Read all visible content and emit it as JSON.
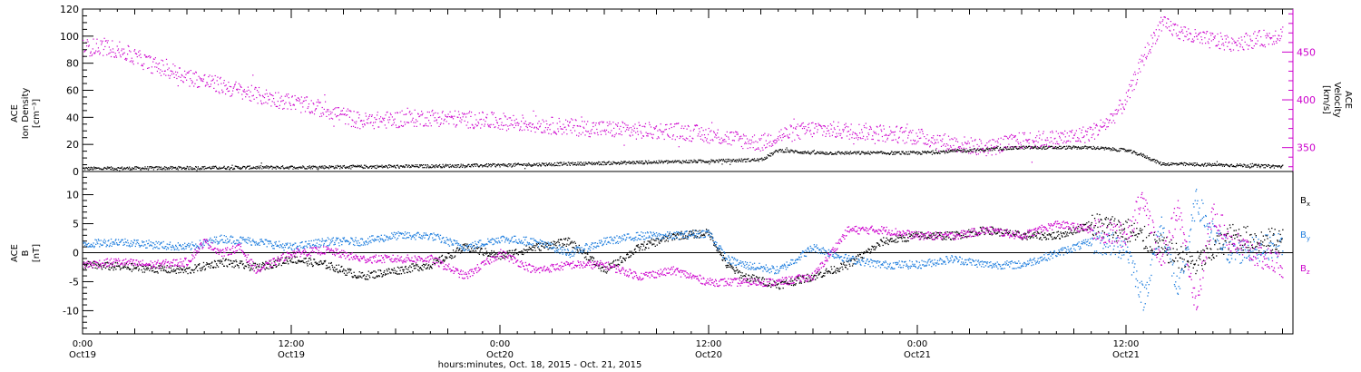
{
  "chart_data": [
    {
      "type": "scatter",
      "title": "",
      "ylabel_lines": [
        "ACE",
        "Ion Density",
        "[cm⁻³]"
      ],
      "ylabel_right_lines": [
        "ACE",
        "Velocity",
        "[km/s]"
      ],
      "ylim": [
        0,
        120
      ],
      "yticks": [
        0,
        20,
        40,
        60,
        80,
        100,
        120
      ],
      "ylim_right": [
        325,
        495
      ],
      "yticks_right": [
        350,
        400,
        450
      ],
      "x_hours": [
        0,
        69.6
      ],
      "series": [
        {
          "name": "",
          "axis": "left",
          "color": "#000000",
          "x": [
            0,
            6,
            12,
            18,
            24,
            30,
            36,
            39,
            40,
            42,
            48,
            54,
            58,
            60,
            61,
            62,
            66,
            69
          ],
          "values": [
            2.5,
            3,
            3.5,
            4,
            5,
            6.5,
            8,
            9,
            16,
            14,
            14,
            18,
            18,
            16,
            12,
            6,
            5,
            4
          ]
        },
        {
          "name": "",
          "axis": "right",
          "color": "#cc00cc",
          "x": [
            0,
            1,
            2,
            4,
            6,
            8,
            10,
            12,
            14,
            16,
            18,
            20,
            22,
            24,
            26,
            28,
            30,
            32,
            34,
            36,
            38,
            39,
            40,
            42,
            44,
            46,
            48,
            50,
            52,
            54,
            56,
            57,
            58,
            59,
            60,
            61,
            62,
            64,
            66,
            68,
            69
          ],
          "values": [
            455,
            456,
            453,
            437,
            425,
            415,
            405,
            398,
            390,
            378,
            380,
            382,
            380,
            378,
            375,
            372,
            370,
            368,
            368,
            364,
            358,
            355,
            363,
            370,
            368,
            366,
            362,
            355,
            350,
            358,
            360,
            362,
            366,
            378,
            400,
            445,
            480,
            465,
            460,
            465,
            470
          ]
        }
      ]
    },
    {
      "type": "scatter",
      "title": "",
      "ylabel_lines": [
        "ACE",
        "B",
        "[nT]"
      ],
      "ylim": [
        -14,
        14
      ],
      "yticks": [
        -10,
        -5,
        0,
        5,
        10
      ],
      "x_hours": [
        0,
        69.6
      ],
      "zero_line": true,
      "series": [
        {
          "name": "B",
          "sub": "x",
          "color": "#000000",
          "x": [
            0,
            3,
            6,
            8,
            10,
            12,
            14,
            16,
            18,
            20,
            22,
            24,
            26,
            28,
            30,
            32,
            34,
            36,
            37,
            38,
            40,
            42,
            44,
            46,
            48,
            50,
            52,
            54,
            56,
            58,
            60,
            62,
            64,
            66,
            68,
            69
          ],
          "values": [
            -2,
            -2.5,
            -3,
            -1.5,
            -2.5,
            -1,
            -2,
            -4,
            -3,
            -2,
            1,
            -0.5,
            1,
            2,
            -3,
            1,
            3,
            3.5,
            -2,
            -4,
            -5.5,
            -4,
            -2,
            2,
            3,
            3,
            4,
            3,
            3,
            5,
            4,
            1,
            -2,
            3,
            2,
            2.5
          ]
        },
        {
          "name": "B",
          "sub": "y",
          "color": "#1f7ede",
          "x": [
            0,
            2,
            4,
            6,
            8,
            10,
            12,
            14,
            16,
            18,
            20,
            22,
            24,
            26,
            28,
            30,
            32,
            34,
            36,
            37,
            38,
            40,
            42,
            44,
            46,
            48,
            50,
            52,
            54,
            56,
            58,
            60,
            61,
            62,
            63,
            64,
            65,
            66,
            68,
            69
          ],
          "values": [
            1.5,
            2,
            1.5,
            1,
            2.5,
            2,
            1,
            2,
            2,
            3,
            3,
            1,
            2.5,
            2,
            0,
            2,
            3,
            3,
            3.5,
            -1,
            -2,
            -3,
            1,
            -1,
            -2,
            -2,
            -1,
            -2,
            -2,
            0,
            2,
            1,
            -8,
            5,
            -7,
            9,
            3,
            0,
            1,
            1.5
          ]
        },
        {
          "name": "B",
          "sub": "z",
          "color": "#cc00cc",
          "x": [
            0,
            2,
            4,
            6,
            7,
            8,
            9,
            10,
            12,
            14,
            16,
            18,
            20,
            22,
            24,
            26,
            28,
            30,
            32,
            34,
            36,
            38,
            40,
            42,
            44,
            46,
            48,
            50,
            52,
            54,
            56,
            58,
            60,
            61,
            62,
            63,
            64,
            65,
            66,
            68,
            69
          ],
          "values": [
            -2,
            -1.5,
            -2,
            -1.5,
            2,
            0,
            1,
            -3,
            0,
            0.5,
            -1,
            -1,
            -1,
            -4,
            0,
            -3,
            -2,
            -2,
            -4,
            -3,
            -5,
            -5,
            -5,
            -4,
            4,
            4,
            3,
            3,
            4,
            3,
            5,
            4,
            3,
            10,
            -2,
            8,
            -9,
            7,
            2,
            -1,
            -2
          ]
        }
      ]
    }
  ],
  "x_axis": {
    "ticks": [
      {
        "time": "0:00",
        "date": "Oct19"
      },
      {
        "time": "12:00",
        "date": "Oct19"
      },
      {
        "time": "0:00",
        "date": "Oct20"
      },
      {
        "time": "12:00",
        "date": "Oct20"
      },
      {
        "time": "0:00",
        "date": "Oct21"
      },
      {
        "time": "12:00",
        "date": "Oct21"
      }
    ],
    "tick_hours": [
      0,
      12,
      24,
      36,
      48,
      60
    ],
    "label": "hours:minutes, Oct. 18, 2015 - Oct. 21, 2015"
  },
  "colors": {
    "axis": "#000000",
    "right_axis": "#cc00cc"
  }
}
